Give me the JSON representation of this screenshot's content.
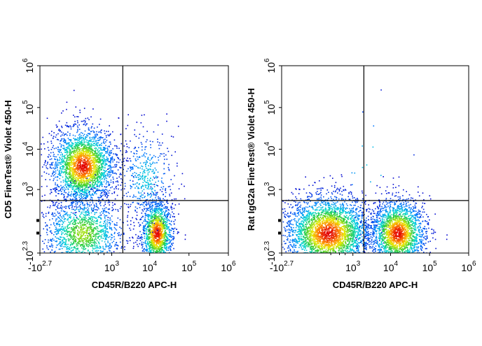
{
  "chart_data": [
    {
      "type": "scatter",
      "subtype": "flow-cytometry-density-dot-plot",
      "xlabel": "CD45R/B220 APC-H",
      "ylabel": "CD5 FineTest® Violet 450-H",
      "x_scale": "biexponential",
      "y_scale": "biexponential",
      "xlim": [
        -501,
        1000000
      ],
      "ylim": [
        -200,
        1000000
      ],
      "x_ticks": [
        {
          "base": "-10",
          "exp": "2.7",
          "value": -501
        },
        {
          "base": "10",
          "exp": "3",
          "value": 1000
        },
        {
          "base": "10",
          "exp": "4",
          "value": 10000
        },
        {
          "base": "10",
          "exp": "5",
          "value": 100000
        },
        {
          "base": "10",
          "exp": "6",
          "value": 1000000
        }
      ],
      "y_ticks": [
        {
          "base": "-10",
          "exp": "2.3",
          "value": -200
        },
        {
          "base": "10",
          "exp": "3",
          "value": 1000
        },
        {
          "base": "10",
          "exp": "4",
          "value": 10000
        },
        {
          "base": "10",
          "exp": "5",
          "value": 100000
        },
        {
          "base": "10",
          "exp": "6",
          "value": 1000000
        }
      ],
      "quadrant_gate": {
        "x": 2000,
        "y": 500
      },
      "populations": [
        {
          "x": 100,
          "y": 4000,
          "x_spread": 0.4,
          "y_spread": 0.45,
          "count": 2600,
          "peak": "high"
        },
        {
          "x": 100,
          "y": 0,
          "x_spread": 0.5,
          "y_spread": 0.45,
          "count": 1500,
          "peak": "medium"
        },
        {
          "x": 15000,
          "y": 0,
          "x_spread": 0.2,
          "y_spread": 0.4,
          "count": 1500,
          "peak": "high"
        },
        {
          "x": 8000,
          "y": 2000,
          "x_spread": 0.35,
          "y_spread": 0.55,
          "count": 450,
          "peak": "low"
        }
      ],
      "grid": false,
      "legend": "none"
    },
    {
      "type": "scatter",
      "subtype": "flow-cytometry-density-dot-plot",
      "xlabel": "CD45R/B220 APC-H",
      "ylabel": "Rat IgG2a FineTest® Violet 450-H",
      "x_scale": "biexponential",
      "y_scale": "biexponential",
      "xlim": [
        -501,
        1000000
      ],
      "ylim": [
        -200,
        1000000
      ],
      "x_ticks": [
        {
          "base": "-10",
          "exp": "2.7",
          "value": -501
        },
        {
          "base": "10",
          "exp": "3",
          "value": 1000
        },
        {
          "base": "10",
          "exp": "4",
          "value": 10000
        },
        {
          "base": "10",
          "exp": "5",
          "value": 100000
        },
        {
          "base": "10",
          "exp": "6",
          "value": 1000000
        }
      ],
      "y_ticks": [
        {
          "base": "-10",
          "exp": "2.3",
          "value": -200
        },
        {
          "base": "10",
          "exp": "3",
          "value": 1000
        },
        {
          "base": "10",
          "exp": "4",
          "value": 10000
        },
        {
          "base": "10",
          "exp": "5",
          "value": 100000
        },
        {
          "base": "10",
          "exp": "6",
          "value": 1000000
        }
      ],
      "quadrant_gate": {
        "x": 2000,
        "y": 500
      },
      "populations": [
        {
          "x": 150,
          "y": 0,
          "x_spread": 0.55,
          "y_spread": 0.45,
          "count": 3400,
          "peak": "high"
        },
        {
          "x": 15000,
          "y": 0,
          "x_spread": 0.35,
          "y_spread": 0.4,
          "count": 2200,
          "peak": "high"
        },
        {
          "x": 3000,
          "y": 5000,
          "x_spread": 0.6,
          "y_spread": 0.8,
          "count": 15,
          "peak": "low"
        }
      ],
      "grid": false,
      "legend": "none"
    }
  ]
}
